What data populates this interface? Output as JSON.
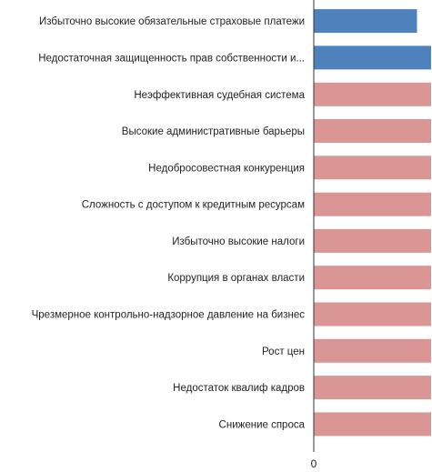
{
  "chart_data": {
    "type": "bar",
    "orientation": "horizontal",
    "title": "",
    "xlabel": "",
    "ylabel": "",
    "categories": [
      "Избыточно высокие обязательные страховые платежи",
      "Недостаточная защищенность прав собственности и...",
      "Неэффективная судебная система",
      "Высокие административные барьеры",
      "Недобросовестная конкуренция",
      "Сложность с доступом к кредитным ресурсам",
      "Избыточно высокие налоги",
      "Коррупция в органах власти",
      "Чрезмерное контрольно-надзорное давление на бизнес",
      "Рост цен",
      "Недостаток квалиф кадров",
      "Снижение спроса"
    ],
    "values": [
      88,
      100,
      100,
      100,
      100,
      100,
      100,
      100,
      100,
      100,
      100,
      100
    ],
    "colors": [
      "#4f81bd",
      "#4f81bd",
      "#d99694",
      "#d99694",
      "#d99694",
      "#d99694",
      "#d99694",
      "#d99694",
      "#d99694",
      "#d99694",
      "#d99694",
      "#d99694"
    ],
    "x_tick_labels": [
      "0"
    ],
    "xlim": [
      0,
      100
    ],
    "grid": false,
    "legend": "none"
  }
}
